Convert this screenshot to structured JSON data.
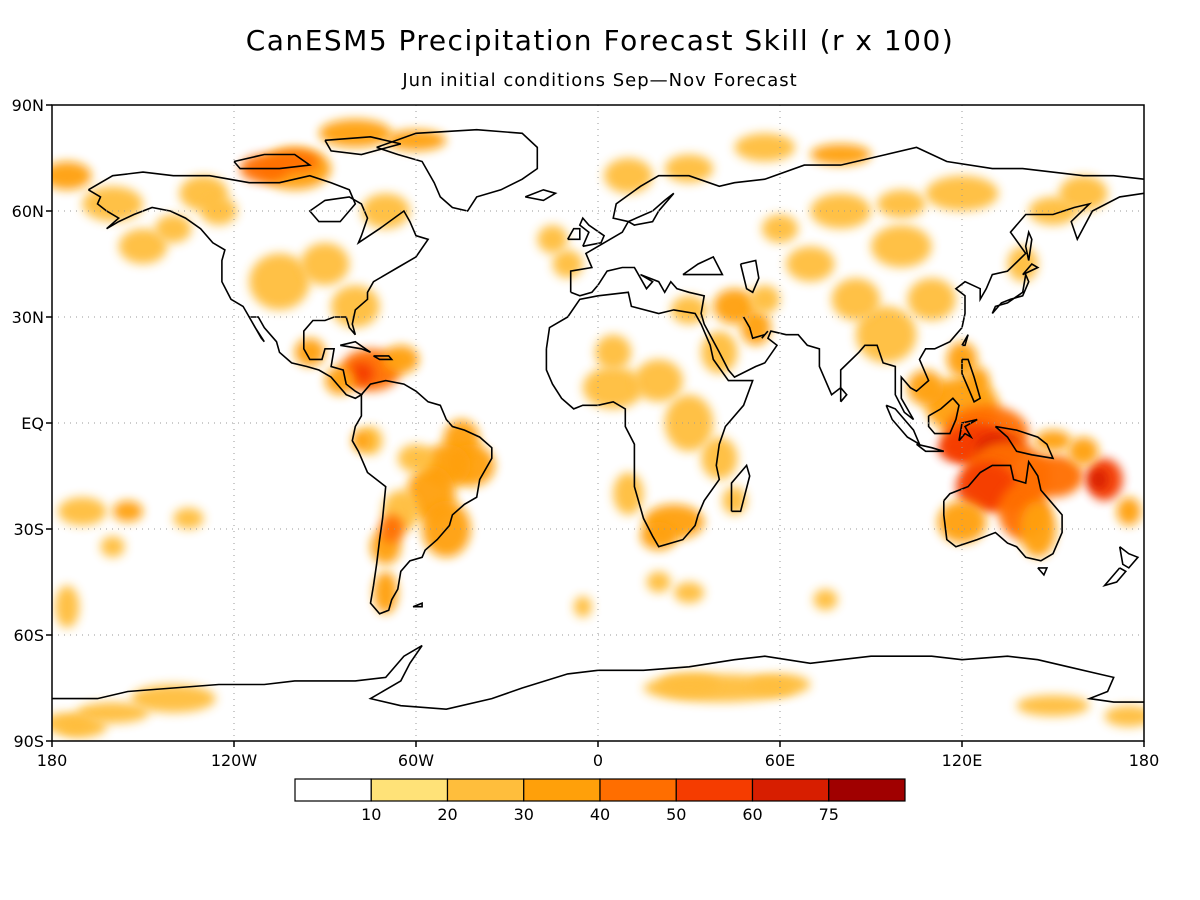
{
  "header": {
    "title": "CanESM5 Precipitation Forecast Skill (r x 100)",
    "subtitle": "Jun initial conditions  Sep—Nov Forecast"
  },
  "map": {
    "projection": "equirectangular",
    "lon_range": [
      -180,
      180
    ],
    "lat_range": [
      -90,
      90
    ],
    "grid": "dotted",
    "lat_labels": [
      "90N",
      "60N",
      "30N",
      "EQ",
      "30S",
      "60S",
      "90S"
    ],
    "lon_labels": [
      "180",
      "120W",
      "60W",
      "0",
      "60E",
      "120E",
      "180"
    ],
    "field": "correlation skill (r x 100)",
    "hotspots": [
      {
        "name": "Maritime Continent",
        "lon": 125,
        "lat": -5,
        "level": 60
      },
      {
        "name": "Northern Australia",
        "lon": 130,
        "lat": -15,
        "level": 50
      },
      {
        "name": "Western Pacific",
        "lon": 170,
        "lat": -15,
        "level": 50
      },
      {
        "name": "Caribbean",
        "lon": -75,
        "lat": 15,
        "level": 50
      },
      {
        "name": "Canadian Arctic",
        "lon": -100,
        "lat": 72,
        "level": 40
      },
      {
        "name": "Brazil",
        "lon": -45,
        "lat": -12,
        "level": 30
      },
      {
        "name": "Southern Africa",
        "lon": 25,
        "lat": -28,
        "level": 30
      },
      {
        "name": "Arabian Peninsula",
        "lon": 45,
        "lat": 32,
        "level": 30
      }
    ]
  },
  "colorbar": {
    "colors": [
      "#ffffff",
      "#ffe278",
      "#ffbe3c",
      "#ffa00a",
      "#ff6e00",
      "#f53c00",
      "#d71e00",
      "#a00000"
    ],
    "labels": [
      "10",
      "20",
      "30",
      "40",
      "50",
      "60",
      "75"
    ]
  }
}
